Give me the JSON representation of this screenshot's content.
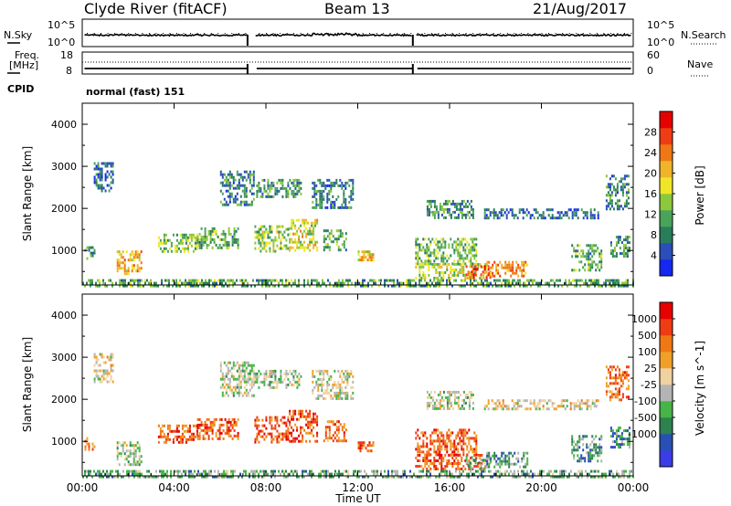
{
  "header": {
    "station": "Clyde River (fitACF)",
    "beam": "Beam 13",
    "date": "21/Aug/2017"
  },
  "noise_panel": {
    "left_label": "N.Sky",
    "left_ticks": [
      "10^5",
      "10^0"
    ],
    "right_label": "N.Search",
    "right_ticks": [
      "10^5",
      "10^0"
    ]
  },
  "freq_panel": {
    "left_label_1": "Freq.",
    "left_label_2": "[MHz]",
    "left_ticks": [
      "18",
      "8"
    ],
    "right_label": "Nave",
    "right_ticks": [
      "60",
      "0"
    ]
  },
  "cpid": {
    "label": "CPID",
    "value": "normal (fast) 151"
  },
  "x_axis": {
    "label": "Time UT",
    "ticks": [
      "00:00",
      "04:00",
      "08:00",
      "12:00",
      "16:00",
      "20:00",
      "00:00"
    ]
  },
  "colors": {
    "power": [
      "#1428f0",
      "#2a4fb8",
      "#2a7d5a",
      "#4aa35a",
      "#8cc83c",
      "#f0e628",
      "#f0b428",
      "#f07814",
      "#f03c14",
      "#e60000"
    ],
    "velocity": [
      "#3c3ce6",
      "#2850b4",
      "#2d8250",
      "#46b446",
      "#b4b4b4",
      "#f0d2a0",
      "#f0a028",
      "#f07814",
      "#f03c14",
      "#e60000"
    ]
  },
  "chart_data": [
    {
      "type": "heatmap",
      "name": "power",
      "ylabel": "Slant Range [km]",
      "xlabel": "Time UT",
      "x_range_hours": [
        0,
        24
      ],
      "ylim": [
        180,
        4500
      ],
      "y_ticks": [
        1000,
        2000,
        3000,
        4000
      ],
      "colorbar": {
        "label": "Power [dB]",
        "range": [
          0,
          32
        ],
        "tick_values": [
          4,
          8,
          12,
          16,
          20,
          24,
          28
        ],
        "tick_labels": [
          "4",
          "8",
          "12",
          "16",
          "20",
          "24",
          "28"
        ]
      },
      "echo_regions": [
        {
          "t0": 0.1,
          "t1": 0.5,
          "r0": 800,
          "r1": 1100,
          "level": 0.3
        },
        {
          "t0": 1.5,
          "t1": 2.6,
          "r0": 450,
          "r1": 1000,
          "level": 0.65
        },
        {
          "t0": 3.3,
          "t1": 5.0,
          "r0": 950,
          "r1": 1400,
          "level": 0.45
        },
        {
          "t0": 5.0,
          "t1": 6.8,
          "r0": 1050,
          "r1": 1550,
          "level": 0.35
        },
        {
          "t0": 7.5,
          "t1": 9.0,
          "r0": 1000,
          "r1": 1600,
          "level": 0.45
        },
        {
          "t0": 9.0,
          "t1": 10.2,
          "r0": 1000,
          "r1": 1750,
          "level": 0.55
        },
        {
          "t0": 10.5,
          "t1": 11.5,
          "r0": 1000,
          "r1": 1500,
          "level": 0.35
        },
        {
          "t0": 12.0,
          "t1": 12.7,
          "r0": 800,
          "r1": 1000,
          "level": 0.6
        },
        {
          "t0": 14.5,
          "t1": 17.2,
          "r0": 700,
          "r1": 1300,
          "level": 0.4
        },
        {
          "t0": 14.5,
          "t1": 17.6,
          "r0": 350,
          "r1": 700,
          "level": 0.5
        },
        {
          "t0": 16.7,
          "t1": 17.8,
          "r0": 350,
          "r1": 650,
          "level": 0.8
        },
        {
          "t0": 17.6,
          "t1": 19.4,
          "r0": 400,
          "r1": 750,
          "level": 0.7
        },
        {
          "t0": 21.3,
          "t1": 22.6,
          "r0": 550,
          "r1": 1150,
          "level": 0.35
        },
        {
          "t0": 23.0,
          "t1": 23.8,
          "r0": 850,
          "r1": 1350,
          "level": 0.3
        },
        {
          "t0": 6.0,
          "t1": 7.5,
          "r0": 2100,
          "r1": 2900,
          "level": 0.25
        },
        {
          "t0": 7.5,
          "t1": 9.5,
          "r0": 2300,
          "r1": 2700,
          "level": 0.3
        },
        {
          "t0": 10.0,
          "t1": 11.8,
          "r0": 2000,
          "r1": 2700,
          "level": 0.25
        },
        {
          "t0": 15.0,
          "t1": 17.0,
          "r0": 1800,
          "r1": 2200,
          "level": 0.3
        },
        {
          "t0": 17.5,
          "t1": 22.5,
          "r0": 1750,
          "r1": 2000,
          "level": 0.2
        },
        {
          "t0": 22.8,
          "t1": 23.8,
          "r0": 2000,
          "r1": 2800,
          "level": 0.25
        },
        {
          "t0": 0.5,
          "t1": 1.3,
          "r0": 2400,
          "r1": 3100,
          "level": 0.2
        },
        {
          "t0": 0.0,
          "t1": 24.0,
          "r0": 180,
          "r1": 320,
          "level": 0.35
        }
      ]
    },
    {
      "type": "heatmap",
      "name": "velocity",
      "ylabel": "Slant Range [km]",
      "xlabel": "Time UT",
      "x_range_hours": [
        0,
        24
      ],
      "ylim": [
        180,
        4500
      ],
      "y_ticks": [
        1000,
        2000,
        3000,
        4000
      ],
      "colorbar": {
        "label": "Velocity [m s^-1]",
        "tick_labels": [
          "1000",
          "500",
          "100",
          "25",
          "-25",
          "-100",
          "-500",
          "-1000"
        ]
      },
      "echo_regions": [
        {
          "t0": 0.1,
          "t1": 0.5,
          "r0": 800,
          "r1": 1100,
          "level": 0.75
        },
        {
          "t0": 1.5,
          "t1": 2.6,
          "r0": 450,
          "r1": 1000,
          "level": 0.45
        },
        {
          "t0": 3.3,
          "t1": 5.0,
          "r0": 950,
          "r1": 1400,
          "level": 0.8
        },
        {
          "t0": 5.0,
          "t1": 6.8,
          "r0": 1050,
          "r1": 1550,
          "level": 0.8
        },
        {
          "t0": 7.5,
          "t1": 9.0,
          "r0": 1000,
          "r1": 1600,
          "level": 0.8
        },
        {
          "t0": 9.0,
          "t1": 10.2,
          "r0": 1000,
          "r1": 1750,
          "level": 0.85
        },
        {
          "t0": 10.5,
          "t1": 11.5,
          "r0": 1000,
          "r1": 1500,
          "level": 0.75
        },
        {
          "t0": 12.0,
          "t1": 12.7,
          "r0": 800,
          "r1": 1000,
          "level": 0.8
        },
        {
          "t0": 14.5,
          "t1": 17.2,
          "r0": 700,
          "r1": 1300,
          "level": 0.8
        },
        {
          "t0": 14.5,
          "t1": 17.6,
          "r0": 350,
          "r1": 700,
          "level": 0.82
        },
        {
          "t0": 16.7,
          "t1": 17.8,
          "r0": 350,
          "r1": 650,
          "level": 0.4
        },
        {
          "t0": 17.6,
          "t1": 19.4,
          "r0": 400,
          "r1": 750,
          "level": 0.3
        },
        {
          "t0": 21.3,
          "t1": 22.6,
          "r0": 550,
          "r1": 1150,
          "level": 0.3
        },
        {
          "t0": 23.0,
          "t1": 23.8,
          "r0": 850,
          "r1": 1350,
          "level": 0.25
        },
        {
          "t0": 6.0,
          "t1": 7.5,
          "r0": 2100,
          "r1": 2900,
          "level": 0.45
        },
        {
          "t0": 7.5,
          "t1": 9.5,
          "r0": 2300,
          "r1": 2700,
          "level": 0.45
        },
        {
          "t0": 10.0,
          "t1": 11.8,
          "r0": 2000,
          "r1": 2700,
          "level": 0.5
        },
        {
          "t0": 15.0,
          "t1": 17.0,
          "r0": 1800,
          "r1": 2200,
          "level": 0.45
        },
        {
          "t0": 17.5,
          "t1": 22.5,
          "r0": 1750,
          "r1": 2000,
          "level": 0.55
        },
        {
          "t0": 22.8,
          "t1": 23.8,
          "r0": 2000,
          "r1": 2800,
          "level": 0.75
        },
        {
          "t0": 0.5,
          "t1": 1.3,
          "r0": 2400,
          "r1": 3100,
          "level": 0.55
        },
        {
          "t0": 0.0,
          "t1": 24.0,
          "r0": 180,
          "r1": 320,
          "level": 0.35
        }
      ]
    }
  ]
}
